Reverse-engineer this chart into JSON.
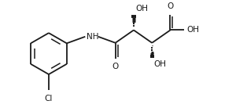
{
  "bg_color": "#ffffff",
  "line_color": "#1a1a1a",
  "line_width": 1.3,
  "font_size": 7.5,
  "figsize": [
    3.0,
    1.38
  ],
  "dpi": 100,
  "xlim": [
    0,
    10.5
  ],
  "ylim": [
    0,
    4.8
  ]
}
